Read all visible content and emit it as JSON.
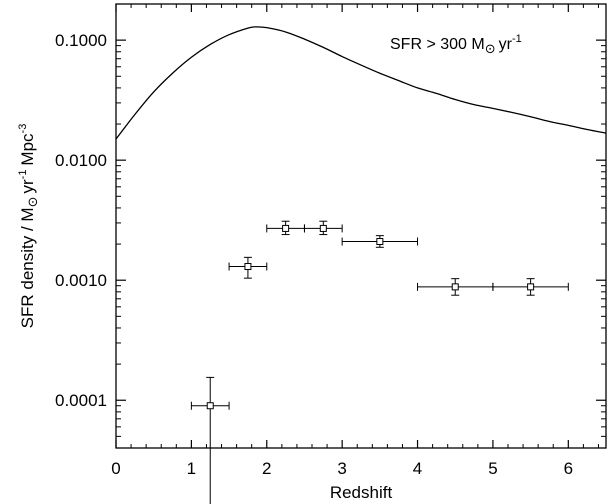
{
  "chart_data": {
    "type": "scatter",
    "xlabel": "Redshift",
    "ylabel": "SFR density / M⊙ yr⁻¹ Mpc⁻³",
    "ylabel_parts": {
      "prefix": "SFR density / M",
      "sun": "⊙",
      "yr": "yr",
      "yr_exp": "-1",
      "mpc": "Mpc",
      "mpc_exp": "-3"
    },
    "annotation": {
      "prefix": "SFR > 300 M",
      "sun": "⊙",
      "yr": "yr",
      "yr_exp": "-1"
    },
    "x_scale": "linear",
    "y_scale": "log",
    "xlim": [
      0,
      6.5
    ],
    "ylim": [
      4e-05,
      0.2
    ],
    "x_ticks": [
      0,
      1,
      2,
      3,
      4,
      5,
      6
    ],
    "x_tick_labels": [
      "0",
      "1",
      "2",
      "3",
      "4",
      "5",
      "6"
    ],
    "y_ticks": [
      0.0001,
      0.001,
      0.01,
      0.1
    ],
    "y_tick_labels": [
      "0.0001",
      "0.0010",
      "0.0100",
      "0.1000"
    ],
    "grid": false,
    "legend": "none",
    "series": [
      {
        "type": "line",
        "x": [
          0.0,
          0.25,
          0.5,
          0.75,
          1.0,
          1.25,
          1.5,
          1.75,
          1.85,
          2.0,
          2.25,
          2.5,
          2.75,
          3.0,
          3.25,
          3.5,
          3.75,
          4.0,
          4.25,
          4.5,
          4.75,
          5.0,
          5.25,
          5.5,
          5.75,
          6.0,
          6.25,
          6.5
        ],
        "y": [
          0.015,
          0.024,
          0.037,
          0.053,
          0.072,
          0.092,
          0.111,
          0.126,
          0.129,
          0.127,
          0.117,
          0.102,
          0.087,
          0.073,
          0.062,
          0.053,
          0.046,
          0.04,
          0.036,
          0.032,
          0.029,
          0.027,
          0.025,
          0.023,
          0.021,
          0.0195,
          0.018,
          0.0168
        ]
      },
      {
        "type": "errorbar",
        "points": [
          {
            "x": 1.25,
            "y": 9e-05,
            "xerr": [
              0.25,
              0.25
            ],
            "yerr_low": 1e-05,
            "yerr_high": 0.000155
          },
          {
            "x": 1.75,
            "y": 0.0013,
            "xerr": [
              0.25,
              0.25
            ],
            "yerr_low": 0.00104,
            "yerr_high": 0.00155
          },
          {
            "x": 2.25,
            "y": 0.0027,
            "xerr": [
              0.25,
              0.25
            ],
            "yerr_low": 0.0024,
            "yerr_high": 0.0031
          },
          {
            "x": 2.75,
            "y": 0.0027,
            "xerr": [
              0.25,
              0.25
            ],
            "yerr_low": 0.0024,
            "yerr_high": 0.0031
          },
          {
            "x": 3.5,
            "y": 0.0021,
            "xerr": [
              0.5,
              0.5
            ],
            "yerr_low": 0.00188,
            "yerr_high": 0.00235
          },
          {
            "x": 4.5,
            "y": 0.00088,
            "xerr": [
              0.5,
              0.5
            ],
            "yerr_low": 0.00075,
            "yerr_high": 0.00103
          },
          {
            "x": 5.5,
            "y": 0.00088,
            "xerr": [
              0.5,
              0.5
            ],
            "yerr_low": 0.00075,
            "yerr_high": 0.00103
          }
        ]
      }
    ]
  }
}
